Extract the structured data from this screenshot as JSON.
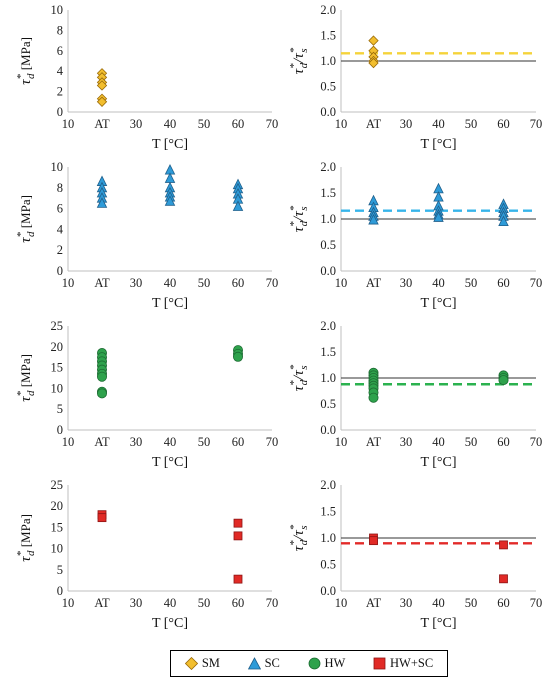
{
  "colors": {
    "SM": "#F2BE2E",
    "SC": "#2E9BD8",
    "HW": "#2EA24C",
    "HWSC": "#E12A26",
    "marker_edge_SM": "#9A6B0A",
    "marker_edge_SC": "#1F5F8B",
    "marker_edge_HW": "#1C6B32",
    "marker_edge_HWSC": "#8E1414",
    "dash_SM": "#F5D33A",
    "dash_SC": "#36B4EA",
    "dash_HW": "#2BB24F",
    "dash_HWSC": "#E22A28",
    "axis": "#bfbfbf",
    "reference_line": "#333333"
  },
  "legend": {
    "items": [
      {
        "label": "SM",
        "marker": "diamond",
        "color_key": "SM"
      },
      {
        "label": "SC",
        "marker": "triangle",
        "color_key": "SC"
      },
      {
        "label": "HW",
        "marker": "circle",
        "color_key": "HW"
      },
      {
        "label": "HW+SC",
        "marker": "square",
        "color_key": "HWSC"
      }
    ]
  },
  "chart_data": [
    {
      "id": "sm-absolute",
      "type": "scatter",
      "marker": "diamond",
      "color_key": "SM",
      "xlabel": "T [°C]",
      "ylabel": "τ*d [MPa]",
      "ylabel_kind": "absolute",
      "xlim": [
        10,
        70
      ],
      "xticks": [
        10,
        "AT",
        30,
        40,
        50,
        60,
        70
      ],
      "ylim": [
        0,
        10
      ],
      "yticks": [
        0,
        2,
        4,
        6,
        8,
        10
      ],
      "ytick_decimals": 0,
      "points": [
        [
          20,
          3.8
        ],
        [
          20,
          3.4
        ],
        [
          20,
          2.9
        ],
        [
          20,
          2.6
        ],
        [
          20,
          1.3
        ],
        [
          20,
          1.0
        ]
      ]
    },
    {
      "id": "sm-normalized",
      "type": "scatter",
      "marker": "diamond",
      "color_key": "SM",
      "xlabel": "T [°C]",
      "ylabel": "τ*d/τ*s",
      "ylabel_kind": "ratio",
      "xlim": [
        10,
        70
      ],
      "xticks": [
        10,
        "AT",
        30,
        40,
        50,
        60,
        70
      ],
      "ylim": [
        0,
        2
      ],
      "yticks": [
        0,
        0.5,
        1.0,
        1.5,
        2.0
      ],
      "ytick_decimals": 1,
      "reference_line": 1.0,
      "mean_line": 1.15,
      "points": [
        [
          20,
          1.4
        ],
        [
          20,
          1.2
        ],
        [
          20,
          1.08
        ],
        [
          20,
          1.0
        ],
        [
          20,
          0.96
        ]
      ]
    },
    {
      "id": "sc-absolute",
      "type": "scatter",
      "marker": "triangle",
      "color_key": "SC",
      "xlabel": "T [°C]",
      "ylabel": "τ*d [MPa]",
      "ylabel_kind": "absolute",
      "xlim": [
        10,
        70
      ],
      "xticks": [
        10,
        "AT",
        30,
        40,
        50,
        60,
        70
      ],
      "ylim": [
        0,
        10
      ],
      "yticks": [
        0,
        2,
        4,
        6,
        8,
        10
      ],
      "ytick_decimals": 0,
      "points": [
        [
          20,
          8.6
        ],
        [
          20,
          8.0
        ],
        [
          20,
          7.5
        ],
        [
          20,
          7.0
        ],
        [
          20,
          6.5
        ],
        [
          40,
          9.7
        ],
        [
          40,
          8.9
        ],
        [
          40,
          8.0
        ],
        [
          40,
          7.5
        ],
        [
          40,
          7.1
        ],
        [
          40,
          6.7
        ],
        [
          60,
          8.3
        ],
        [
          60,
          7.9
        ],
        [
          60,
          7.4
        ],
        [
          60,
          6.9
        ],
        [
          60,
          6.2
        ]
      ]
    },
    {
      "id": "sc-normalized",
      "type": "scatter",
      "marker": "triangle",
      "color_key": "SC",
      "xlabel": "T [°C]",
      "ylabel": "τ*d/τ*s",
      "ylabel_kind": "ratio",
      "xlim": [
        10,
        70
      ],
      "xticks": [
        10,
        "AT",
        30,
        40,
        50,
        60,
        70
      ],
      "ylim": [
        0,
        2
      ],
      "yticks": [
        0,
        0.5,
        1.0,
        1.5,
        2.0
      ],
      "ytick_decimals": 1,
      "reference_line": 1.0,
      "mean_line": 1.16,
      "points": [
        [
          20,
          1.35
        ],
        [
          20,
          1.22
        ],
        [
          20,
          1.12
        ],
        [
          20,
          1.05
        ],
        [
          20,
          0.98
        ],
        [
          40,
          1.58
        ],
        [
          40,
          1.42
        ],
        [
          40,
          1.25
        ],
        [
          40,
          1.15
        ],
        [
          40,
          1.08
        ],
        [
          40,
          1.03
        ],
        [
          60,
          1.28
        ],
        [
          60,
          1.2
        ],
        [
          60,
          1.12
        ],
        [
          60,
          1.05
        ],
        [
          60,
          0.95
        ]
      ]
    },
    {
      "id": "hw-absolute",
      "type": "scatter",
      "marker": "circle",
      "color_key": "HW",
      "xlabel": "T [°C]",
      "ylabel": "τ*d [MPa]",
      "ylabel_kind": "absolute",
      "xlim": [
        10,
        70
      ],
      "xticks": [
        10,
        "AT",
        30,
        40,
        50,
        60,
        70
      ],
      "ylim": [
        0,
        25
      ],
      "yticks": [
        0,
        5,
        10,
        15,
        20,
        25
      ],
      "ytick_decimals": 0,
      "points": [
        [
          20,
          18.5
        ],
        [
          20,
          17.5
        ],
        [
          20,
          16.5
        ],
        [
          20,
          15.5
        ],
        [
          20,
          14.5
        ],
        [
          20,
          13.5
        ],
        [
          20,
          12.8
        ],
        [
          20,
          9.2
        ],
        [
          20,
          8.8
        ],
        [
          60,
          19.2
        ],
        [
          60,
          18.3
        ],
        [
          60,
          17.6
        ]
      ]
    },
    {
      "id": "hw-normalized",
      "type": "scatter",
      "marker": "circle",
      "color_key": "HW",
      "xlabel": "T [°C]",
      "ylabel": "τ*d/τ*s",
      "ylabel_kind": "ratio",
      "xlim": [
        10,
        70
      ],
      "xticks": [
        10,
        "AT",
        30,
        40,
        50,
        60,
        70
      ],
      "ylim": [
        0,
        2
      ],
      "yticks": [
        0,
        0.5,
        1.0,
        1.5,
        2.0
      ],
      "ytick_decimals": 1,
      "reference_line": 1.0,
      "mean_line": 0.88,
      "points": [
        [
          20,
          1.1
        ],
        [
          20,
          1.05
        ],
        [
          20,
          1.0
        ],
        [
          20,
          0.95
        ],
        [
          20,
          0.9
        ],
        [
          20,
          0.85
        ],
        [
          20,
          0.8
        ],
        [
          20,
          0.72
        ],
        [
          20,
          0.62
        ],
        [
          60,
          1.05
        ],
        [
          60,
          1.0
        ],
        [
          60,
          0.96
        ]
      ]
    },
    {
      "id": "hwsc-absolute",
      "type": "scatter",
      "marker": "square",
      "color_key": "HWSC",
      "xlabel": "T [°C]",
      "ylabel": "τ*d [MPa]",
      "ylabel_kind": "absolute",
      "xlim": [
        10,
        70
      ],
      "xticks": [
        10,
        "AT",
        30,
        40,
        50,
        60,
        70
      ],
      "ylim": [
        0,
        25
      ],
      "yticks": [
        0,
        5,
        10,
        15,
        20,
        25
      ],
      "ytick_decimals": 0,
      "points": [
        [
          20,
          18.0
        ],
        [
          20,
          17.3
        ],
        [
          60,
          16.0
        ],
        [
          60,
          13.0
        ],
        [
          60,
          2.8
        ]
      ]
    },
    {
      "id": "hwsc-normalized",
      "type": "scatter",
      "marker": "square",
      "color_key": "HWSC",
      "xlabel": "T [°C]",
      "ylabel": "τ*d/τ*s",
      "ylabel_kind": "ratio",
      "xlim": [
        10,
        70
      ],
      "xticks": [
        10,
        "AT",
        30,
        40,
        50,
        60,
        70
      ],
      "ylim": [
        0,
        2
      ],
      "yticks": [
        0,
        0.5,
        1.0,
        1.5,
        2.0
      ],
      "ytick_decimals": 1,
      "reference_line": 1.0,
      "mean_line": 0.9,
      "points": [
        [
          20,
          1.0
        ],
        [
          20,
          0.95
        ],
        [
          60,
          0.87
        ],
        [
          60,
          0.23
        ]
      ]
    }
  ]
}
